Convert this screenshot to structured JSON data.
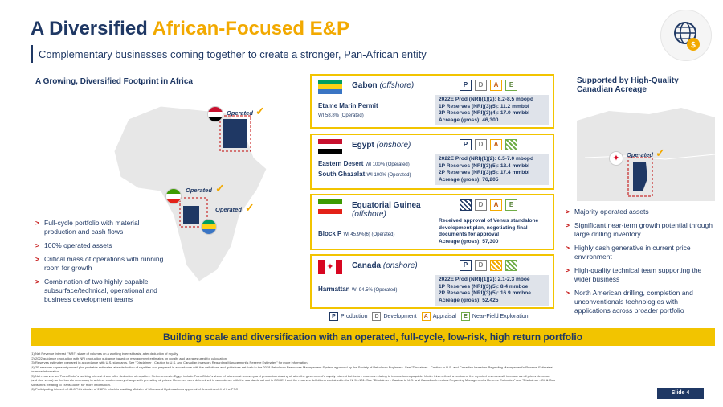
{
  "header": {
    "title_main": "A Diversified",
    "title_accent": "African-Focused E&P",
    "subtitle": "Complementary businesses coming together to create a stronger, Pan-African entity"
  },
  "left": {
    "heading": "A Growing, Diversified Footprint in Africa",
    "operated_label": "Operated",
    "bullets": [
      "Full-cycle portfolio with material production and cash flows",
      "100% operated assets",
      "Critical mass of operations with running room for growth",
      "Combination of two highly capable subsurface/technical, operational and business development teams"
    ]
  },
  "cards": {
    "gabon": {
      "country": "Gabon",
      "qualifier": "(offshore)",
      "asset1": "Etame Marin Permit",
      "asset1_sub": "WI 58.8% (Operated)",
      "stats": [
        "2022E Prod (NRI)(1)(2): 8.2-8.5 mbopd",
        "1P Reserves (NRI)(3)(5): 11.2 mmbbl",
        "2P Reserves (NRI)(3)(4): 17.0 mmbbl",
        "Acreage (gross): 46,300"
      ]
    },
    "egypt": {
      "country": "Egypt",
      "qualifier": "(onshore)",
      "asset1": "Eastern Desert",
      "asset1_sub": "WI 100% (Operated)",
      "asset2": "South Ghazalat",
      "asset2_sub": "WI 100% (Operated)",
      "stats": [
        "2022E Prod (NRI)(1)(2): 6.5-7.0 mbopd",
        "1P Reserves (NRI)(3)(5): 12.4 mmbbl",
        "2P Reserves (NRI)(3)(5): 17.4 mmbbl",
        "Acreage (gross): 76,205"
      ]
    },
    "eqguinea": {
      "country": "Equatorial Guinea",
      "qualifier": "(offshore)",
      "asset1": "Block P",
      "asset1_sub": "WI 45.9%(6) (Operated)",
      "stats": [
        "Received approval of Venus standalone",
        "development plan, negotiating final",
        "documents for approval",
        "Acreage (gross): 57,300"
      ]
    },
    "canada": {
      "country": "Canada",
      "qualifier": "(onshore)",
      "asset1": "Harmattan",
      "asset1_sub": "WI 94.5% (Operated)",
      "stats": [
        "2022E Prod (NRI)(1)(2): 2.1-2.3 mboe",
        "1P Reserves (NRI)(3)(5): 8.4 mmboe",
        "2P Reserves (NRI)(3)(5): 16.9 mmboe",
        "Acreage (gross): 52,425"
      ]
    },
    "badge_letters": [
      "P",
      "D",
      "A",
      "E"
    ]
  },
  "legend": {
    "production": "Production",
    "development": "Development",
    "appraisal": "Appraisal",
    "exploration": "Near-Field Exploration"
  },
  "right": {
    "heading_line1": "Supported by High-Quality",
    "heading_line2": "Canadian Acreage",
    "operated_label": "Operated",
    "bullets": [
      "Majority operated assets",
      "Significant near-term growth potential through large drilling inventory",
      "Highly cash generative in current price environment",
      "High-quality technical team supporting the wider business",
      "North American drilling, completion and unconventionals technologies with applications across broader portfolio"
    ]
  },
  "banner": "Building scale and diversification with an operated, full-cycle, low-risk, high return portfolio",
  "notes": [
    "(1)   Net Revenue Interest (\"NRI\") share of volumes on a working interest basis, after deduction of royalty.",
    "(2)   2022 guidance production with NRI production guidance based on management estimates on royalty and tax rates used for calculation.",
    "(3)   Reserves estimates prepared in accordance with U.S. standards. See \"Disclaimer - Caution to U.S. and Canadian Investors Regarding Management's Reserve Estimates\" for more information.",
    "(4)   2P reserves represent proved plus probable estimates after deduction of royalties and prepared in accordance with the definitions and guidelines set forth in the 2018 Petroleum Resources Management System approved by the Society of Petroleum Engineers. See \"Disclaimer - Caution to U.S. and Canadian Investors Regarding Management's Reserve Estimates\"",
    "       for more information.",
    "(5)   Net reserves are TransGlobe's working interest share after deduction of royalties. Net reserves in Egypt include TransGlobe's share of future cost recovery and production sharing oil after the government's royalty interest but before reserves relating to income taxes payable. Under this method, a portion of the reported reserves will increase as oil prices decrease",
    "       (and vice versa) as the barrels necessary to achieve cost recovery change with prevailing oil prices. Reserves were determined in accordance with the standards set out in COGEH and the reserves definitions contained in the NI 51-101. See \"Disclaimer - Caution to U.S. and Canadian Investors Regarding Management's Reserve Estimates\" and \"Disclaimer - Oil & Gas",
    "       Advisories Relating to TransGlobe\" for more information.",
    "(6)   Participating interest of 45.87% inclusive of 2.87% which is awaiting Minister of Mines and Hydrocarbons approval of Amendment 4 of the PSC"
  ],
  "footer": {
    "slide": "Slide 4"
  }
}
